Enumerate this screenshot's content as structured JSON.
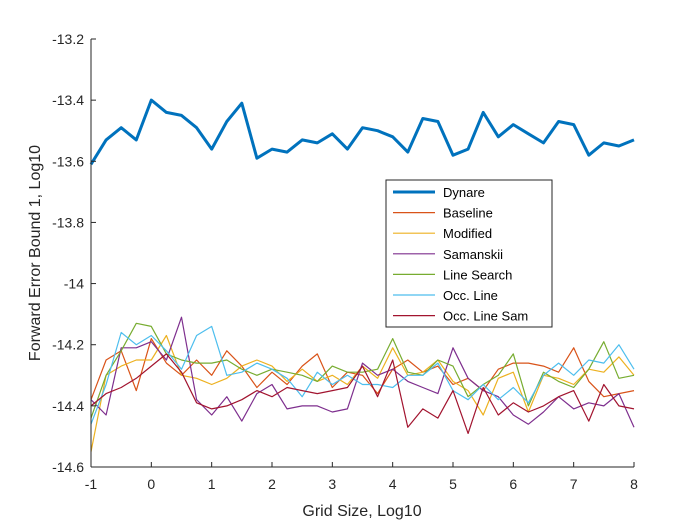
{
  "chart_data": {
    "type": "line",
    "xlabel": "Grid Size, Log10",
    "ylabel": "Forward Error Bound 1,  Log10",
    "xlim": [
      -1,
      8
    ],
    "ylim": [
      -14.6,
      -13.2
    ],
    "xticks": [
      -1,
      0,
      1,
      2,
      3,
      4,
      5,
      6,
      7,
      8
    ],
    "yticks": [
      -14.6,
      -14.4,
      -14.2,
      -14,
      -13.8,
      -13.6,
      -13.4,
      -13.2
    ],
    "xtick_labels": [
      "-1",
      "0",
      "1",
      "2",
      "3",
      "4",
      "5",
      "6",
      "7",
      "8"
    ],
    "ytick_labels": [
      "-14.6",
      "-14.4",
      "-14.2",
      "-14",
      "-13.8",
      "-13.6",
      "-13.4",
      "-13.2"
    ],
    "grid": false,
    "legend_position": "middle-right",
    "x": [
      -1,
      -0.75,
      -0.5,
      -0.25,
      0,
      0.25,
      0.5,
      0.75,
      1,
      1.25,
      1.5,
      1.75,
      2,
      2.25,
      2.5,
      2.75,
      3,
      3.25,
      3.5,
      3.75,
      4,
      4.25,
      4.5,
      4.75,
      5,
      5.25,
      5.5,
      5.75,
      6,
      6.25,
      6.5,
      6.75,
      7,
      7.25,
      7.5,
      7.75,
      8
    ],
    "series": [
      {
        "name": "Dynare",
        "color": "#0072BD",
        "width": 3,
        "values": [
          -13.61,
          -13.53,
          -13.49,
          -13.53,
          -13.4,
          -13.44,
          -13.45,
          -13.49,
          -13.56,
          -13.47,
          -13.41,
          -13.59,
          -13.56,
          -13.57,
          -13.53,
          -13.54,
          -13.51,
          -13.56,
          -13.49,
          -13.5,
          -13.52,
          -13.57,
          -13.46,
          -13.47,
          -13.58,
          -13.56,
          -13.44,
          -13.52,
          -13.48,
          -13.51,
          -13.54,
          -13.47,
          -13.48,
          -13.58,
          -13.54,
          -13.55,
          -13.53
        ]
      },
      {
        "name": "Baseline",
        "color": "#D95319",
        "width": 1.2,
        "values": [
          -14.38,
          -14.25,
          -14.22,
          -14.35,
          -14.18,
          -14.26,
          -14.3,
          -14.25,
          -14.3,
          -14.22,
          -14.27,
          -14.34,
          -14.29,
          -14.33,
          -14.27,
          -14.23,
          -14.34,
          -14.29,
          -14.3,
          -14.36,
          -14.28,
          -14.25,
          -14.29,
          -14.27,
          -14.33,
          -14.31,
          -14.35,
          -14.28,
          -14.26,
          -14.26,
          -14.27,
          -14.29,
          -14.21,
          -14.32,
          -14.37,
          -14.36,
          -14.35
        ]
      },
      {
        "name": "Modified",
        "color": "#EDB120",
        "width": 1.2,
        "values": [
          -14.55,
          -14.3,
          -14.27,
          -14.25,
          -14.25,
          -14.17,
          -14.3,
          -14.31,
          -14.33,
          -14.31,
          -14.27,
          -14.25,
          -14.27,
          -14.32,
          -14.28,
          -14.32,
          -14.3,
          -14.33,
          -14.27,
          -14.31,
          -14.21,
          -14.3,
          -14.29,
          -14.25,
          -14.32,
          -14.35,
          -14.43,
          -14.31,
          -14.29,
          -14.42,
          -14.3,
          -14.31,
          -14.33,
          -14.28,
          -14.29,
          -14.24,
          -14.3
        ]
      },
      {
        "name": "Samanskii",
        "color": "#7E2F8E",
        "width": 1.2,
        "values": [
          -14.38,
          -14.43,
          -14.21,
          -14.21,
          -14.19,
          -14.25,
          -14.11,
          -14.38,
          -14.43,
          -14.37,
          -14.45,
          -14.36,
          -14.33,
          -14.41,
          -14.4,
          -14.4,
          -14.42,
          -14.41,
          -14.26,
          -14.3,
          -14.28,
          -14.32,
          -14.34,
          -14.36,
          -14.21,
          -14.31,
          -14.35,
          -14.37,
          -14.43,
          -14.46,
          -14.42,
          -14.37,
          -14.41,
          -14.39,
          -14.4,
          -14.36,
          -14.47
        ]
      },
      {
        "name": "Line Search",
        "color": "#77AC30",
        "width": 1.2,
        "values": [
          -14.44,
          -14.3,
          -14.22,
          -14.13,
          -14.14,
          -14.23,
          -14.25,
          -14.26,
          -14.26,
          -14.25,
          -14.28,
          -14.3,
          -14.28,
          -14.29,
          -14.3,
          -14.32,
          -14.27,
          -14.29,
          -14.29,
          -14.28,
          -14.18,
          -14.29,
          -14.3,
          -14.25,
          -14.27,
          -14.37,
          -14.33,
          -14.3,
          -14.23,
          -14.4,
          -14.29,
          -14.32,
          -14.34,
          -14.28,
          -14.19,
          -14.31,
          -14.3
        ]
      },
      {
        "name": "Occ. Line",
        "color": "#4DBEEE",
        "width": 1.2,
        "values": [
          -14.46,
          -14.33,
          -14.16,
          -14.2,
          -14.17,
          -14.22,
          -14.28,
          -14.17,
          -14.14,
          -14.3,
          -14.29,
          -14.26,
          -14.28,
          -14.31,
          -14.37,
          -14.29,
          -14.33,
          -14.3,
          -14.33,
          -14.33,
          -14.34,
          -14.3,
          -14.3,
          -14.26,
          -14.35,
          -14.38,
          -14.33,
          -14.38,
          -14.34,
          -14.39,
          -14.3,
          -14.26,
          -14.3,
          -14.25,
          -14.26,
          -14.2,
          -14.28
        ]
      },
      {
        "name": "Occ. Line Sam",
        "color": "#A2142F",
        "width": 1.2,
        "values": [
          -14.4,
          -14.36,
          -14.34,
          -14.31,
          -14.27,
          -14.23,
          -14.29,
          -14.39,
          -14.41,
          -14.4,
          -14.38,
          -14.35,
          -14.37,
          -14.34,
          -14.35,
          -14.36,
          -14.35,
          -14.34,
          -14.27,
          -14.37,
          -14.25,
          -14.47,
          -14.41,
          -14.44,
          -14.35,
          -14.49,
          -14.34,
          -14.43,
          -14.39,
          -14.42,
          -14.4,
          -14.37,
          -14.35,
          -14.45,
          -14.33,
          -14.4,
          -14.41
        ]
      }
    ]
  }
}
